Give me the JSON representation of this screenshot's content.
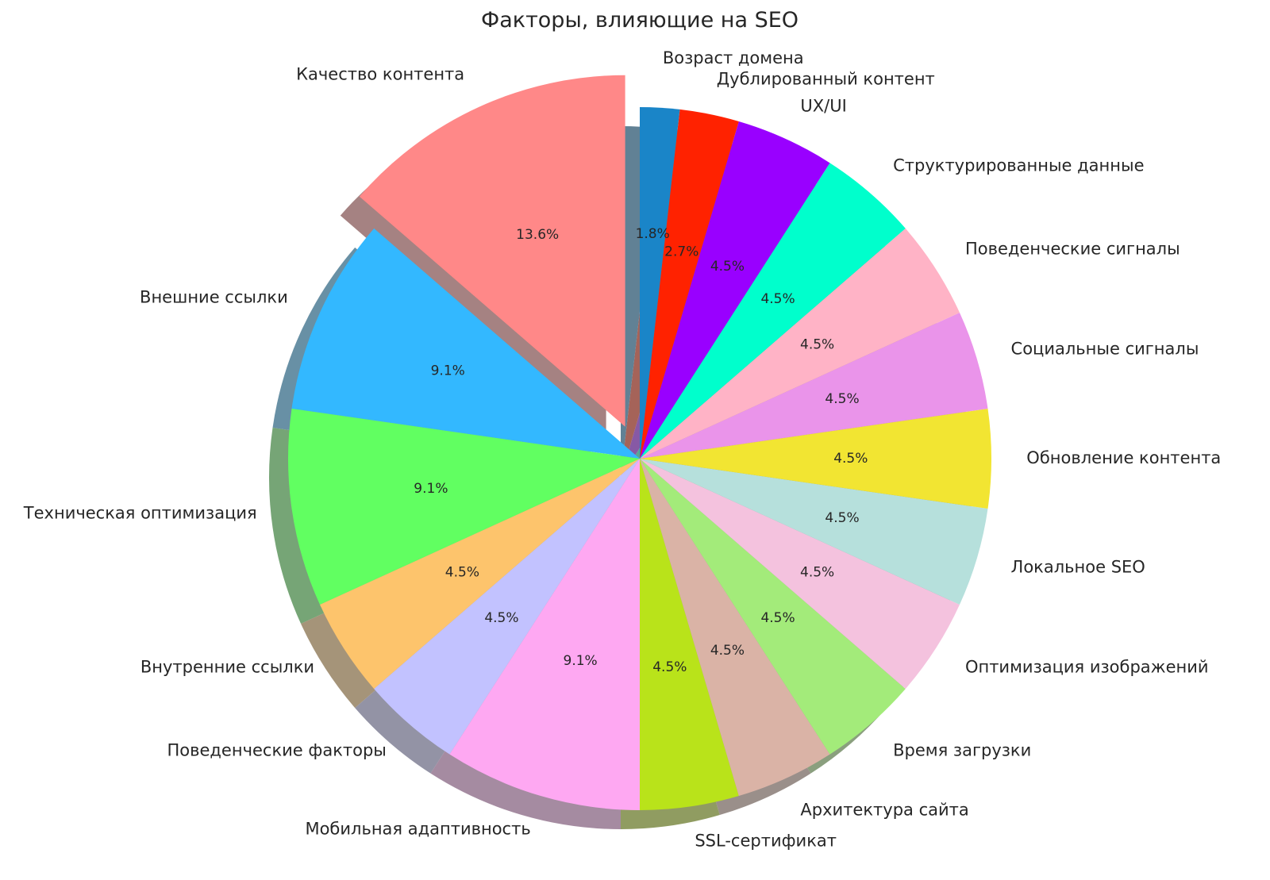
{
  "chart_data": {
    "type": "pie",
    "title": "Факторы, влияющие на SEO",
    "start_angle": 90,
    "direction": "counterclockwise",
    "shadow": true,
    "exploded": [
      "Качество контента"
    ],
    "slices": [
      {
        "label": "Качество контента",
        "value": 15,
        "pct": "13.6%",
        "color": "#ff8888"
      },
      {
        "label": "Внешние ссылки",
        "value": 10,
        "pct": "9.1%",
        "color": "#33b8ff"
      },
      {
        "label": "Техническая оптимизация",
        "value": 10,
        "pct": "9.1%",
        "color": "#61ff61"
      },
      {
        "label": "Внутренние ссылки",
        "value": 5,
        "pct": "4.5%",
        "color": "#fdc46c"
      },
      {
        "label": "Поведенческие факторы",
        "value": 5,
        "pct": "4.5%",
        "color": "#c2c2ff"
      },
      {
        "label": "Мобильная адаптивность",
        "value": 10,
        "pct": "9.1%",
        "color": "#fea8f2"
      },
      {
        "label": "SSL-сертификат",
        "value": 5,
        "pct": "4.5%",
        "color": "#b9e31a"
      },
      {
        "label": "Архитектура сайта",
        "value": 5,
        "pct": "4.5%",
        "color": "#dab3a6"
      },
      {
        "label": "Время загрузки",
        "value": 5,
        "pct": "4.5%",
        "color": "#a3eb7a"
      },
      {
        "label": "Оптимизация изображений",
        "value": 5,
        "pct": "4.5%",
        "color": "#f4c2de"
      },
      {
        "label": "Локальное SEO",
        "value": 5,
        "pct": "4.5%",
        "color": "#b6e0dc"
      },
      {
        "label": "Обновление контента",
        "value": 5,
        "pct": "4.5%",
        "color": "#f2e532"
      },
      {
        "label": "Социальные сигналы",
        "value": 5,
        "pct": "4.5%",
        "color": "#ea94ea"
      },
      {
        "label": "Поведенческие сигналы",
        "value": 5,
        "pct": "4.5%",
        "color": "#ffb3c6"
      },
      {
        "label": "Структурированные данные",
        "value": 5,
        "pct": "4.5%",
        "color": "#00ffcc"
      },
      {
        "label": "UX/UI",
        "value": 5,
        "pct": "4.5%",
        "color": "#9900ff"
      },
      {
        "label": "Дублированный контент",
        "value": 3,
        "pct": "2.7%",
        "color": "#ff2200"
      },
      {
        "label": "Возраст домена",
        "value": 2,
        "pct": "1.8%",
        "color": "#1a85c8"
      }
    ]
  }
}
